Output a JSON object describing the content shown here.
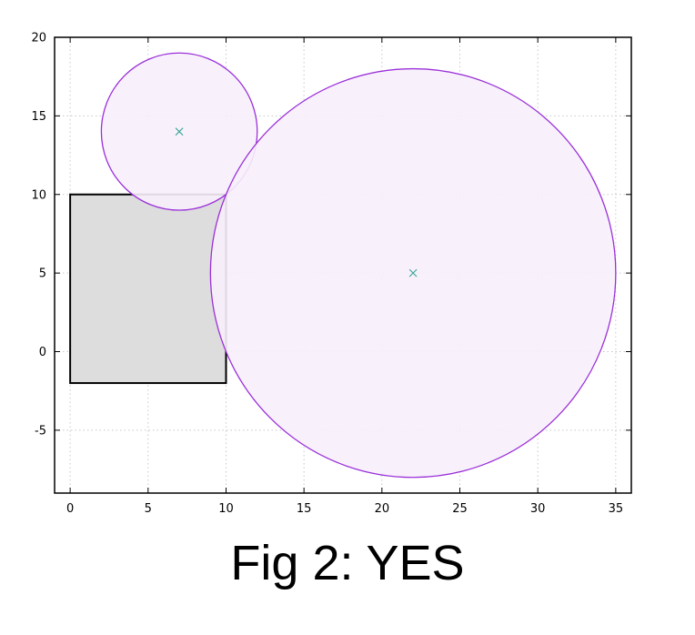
{
  "caption": "Fig 2: YES",
  "chart_data": {
    "type": "scatter",
    "title": "",
    "xlabel": "",
    "ylabel": "",
    "xlim": [
      -1,
      36
    ],
    "ylim": [
      -9,
      20
    ],
    "grid": true,
    "x_ticks": [
      0,
      5,
      10,
      15,
      20,
      25,
      30,
      35
    ],
    "y_ticks": [
      -5,
      0,
      5,
      10,
      15,
      20
    ],
    "rectangle": {
      "x0": 0,
      "y0": -2,
      "x1": 10,
      "y1": 10,
      "fill": "#dddddd",
      "stroke": "#000000"
    },
    "circles": [
      {
        "cx": 7,
        "cy": 14,
        "r": 5,
        "fill": "#f7f0fb",
        "stroke": "#9b30d9"
      },
      {
        "cx": 22,
        "cy": 5,
        "r": 13,
        "fill": "#f7f0fb",
        "stroke": "#9b30d9"
      }
    ],
    "centers": [
      {
        "x": 7,
        "y": 14
      },
      {
        "x": 22,
        "y": 5
      }
    ],
    "center_color": "#3fa89a"
  }
}
